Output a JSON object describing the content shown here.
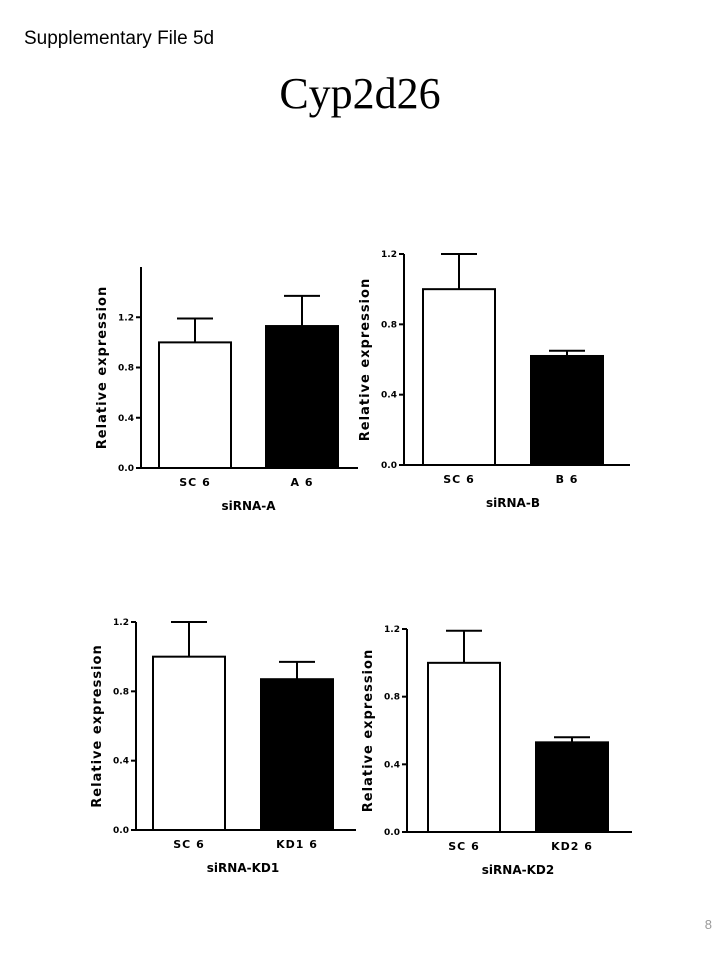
{
  "page": {
    "label": "Supplementary File 5d",
    "title": "Cyp2d26",
    "page_number": "8"
  },
  "chart_data": [
    {
      "type": "bar",
      "ylabel": "Relative expression",
      "xlabel": "siRNA-A",
      "categories": [
        "SC 6",
        "A 6"
      ],
      "values": [
        1.0,
        1.13
      ],
      "errors": [
        0.19,
        0.24
      ],
      "bar_colors": [
        "#ffffff",
        "#000000"
      ],
      "ylim": [
        0,
        1.6
      ],
      "yticks": [
        0.0,
        0.4,
        0.8,
        1.2
      ],
      "ytick_labels": [
        "0.0",
        "0.4",
        "0.8",
        "1.2"
      ],
      "grid": false
    },
    {
      "type": "bar",
      "ylabel": "Relative expression",
      "xlabel": "siRNA-B",
      "categories": [
        "SC 6",
        "B 6"
      ],
      "values": [
        1.0,
        0.62
      ],
      "errors": [
        0.2,
        0.03
      ],
      "bar_colors": [
        "#ffffff",
        "#000000"
      ],
      "ylim": [
        0,
        1.2
      ],
      "yticks": [
        0.0,
        0.4,
        0.8,
        1.2
      ],
      "ytick_labels": [
        "0.0",
        "0.4",
        "0.8",
        "1.2"
      ],
      "grid": false
    },
    {
      "type": "bar",
      "ylabel": "Relative expression",
      "xlabel": "siRNA-KD1",
      "categories": [
        "SC 6",
        "KD1 6"
      ],
      "values": [
        1.0,
        0.87
      ],
      "errors": [
        0.2,
        0.1
      ],
      "bar_colors": [
        "#ffffff",
        "#000000"
      ],
      "ylim": [
        0,
        1.2
      ],
      "yticks": [
        0.0,
        0.4,
        0.8,
        1.2
      ],
      "ytick_labels": [
        "0.0",
        "0.4",
        "0.8",
        "1.2"
      ],
      "grid": false
    },
    {
      "type": "bar",
      "ylabel": "Relative expression",
      "xlabel": "siRNA-KD2",
      "categories": [
        "SC 6",
        "KD2 6"
      ],
      "values": [
        1.0,
        0.53
      ],
      "errors": [
        0.19,
        0.03
      ],
      "bar_colors": [
        "#ffffff",
        "#000000"
      ],
      "ylim": [
        0,
        1.2
      ],
      "yticks": [
        0.0,
        0.4,
        0.8,
        1.2
      ],
      "ytick_labels": [
        "0.0",
        "0.4",
        "0.8",
        "1.2"
      ],
      "grid": false
    }
  ]
}
